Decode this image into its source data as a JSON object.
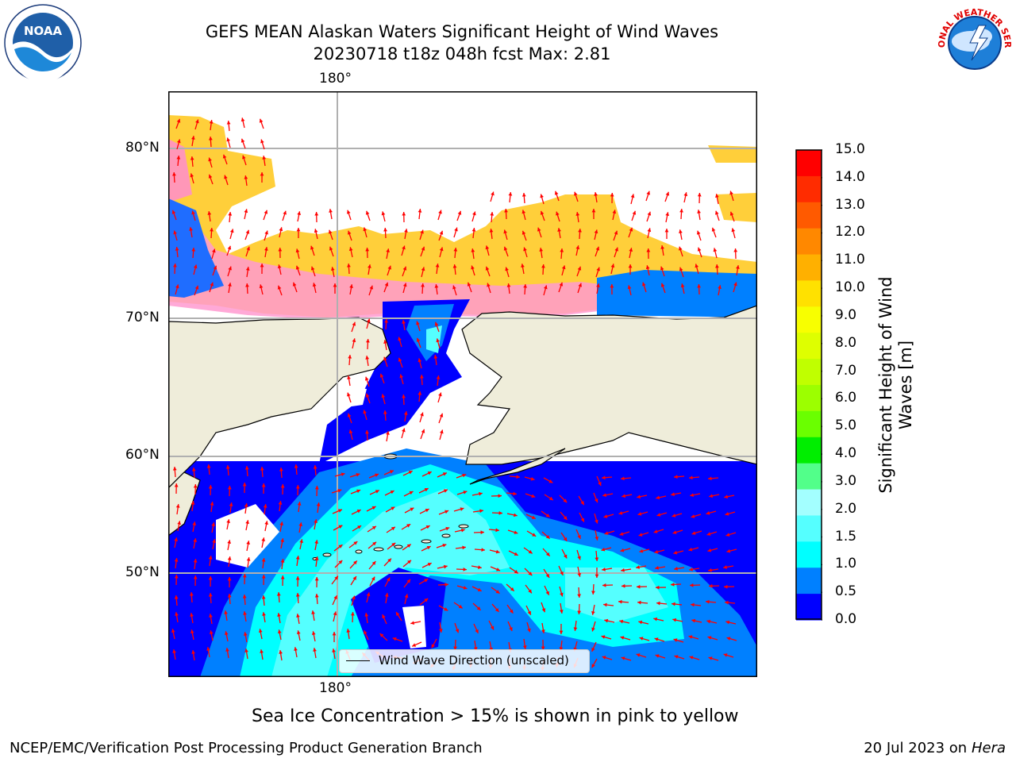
{
  "header": {
    "title_line1": "GEFS MEAN Alaskan Waters Significant Height of Wind Waves",
    "title_line2": "20230718 t18z 048h fcst   Max: 2.81"
  },
  "logos": {
    "left": "noaa-logo",
    "right": "nws-logo",
    "left_text": "NOAA",
    "right_text": "NATIONAL WEATHER SERVICE"
  },
  "map": {
    "lon_label_top": "180°",
    "lon_label_bottom": "180°",
    "lat_labels": [
      "80°N",
      "70°N",
      "60°N",
      "50°N"
    ],
    "legend_label": "Wind Wave Direction (unscaled)",
    "colors": {
      "land": "#efedda",
      "ice_free": "#ffffff",
      "coast": "#000000",
      "grid": "#b0b0b0",
      "arrow": "#ff0000"
    }
  },
  "colorbar": {
    "title": "Significant Height of Wind Waves [m]",
    "title_line1": "Significant Height of Wind",
    "title_line2": "Waves [m]",
    "tick_labels": [
      "15.0",
      "14.0",
      "13.0",
      "12.0",
      "11.0",
      "10.0",
      "9.0",
      "8.0",
      "7.0",
      "6.0",
      "5.0",
      "4.0",
      "3.0",
      "2.0",
      "1.5",
      "1.0",
      "0.5",
      "0.0"
    ],
    "colors_top_to_bottom": [
      "#ff0000",
      "#ff2c00",
      "#ff5a00",
      "#ff8800",
      "#ffb000",
      "#ffe100",
      "#f8ff00",
      "#deff00",
      "#c0ff00",
      "#9cff00",
      "#6aff00",
      "#00ee00",
      "#52ff8a",
      "#a3ffff",
      "#55ffff",
      "#00ffff",
      "#0080ff",
      "#0000ff"
    ]
  },
  "note": "Sea Ice Concentration > 15% is shown in pink to yellow",
  "footer": {
    "left": "NCEP/EMC/Verification Post Processing Product Generation Branch",
    "right_prefix": "20 Jul 2023 on ",
    "right_machine": "Hera"
  }
}
